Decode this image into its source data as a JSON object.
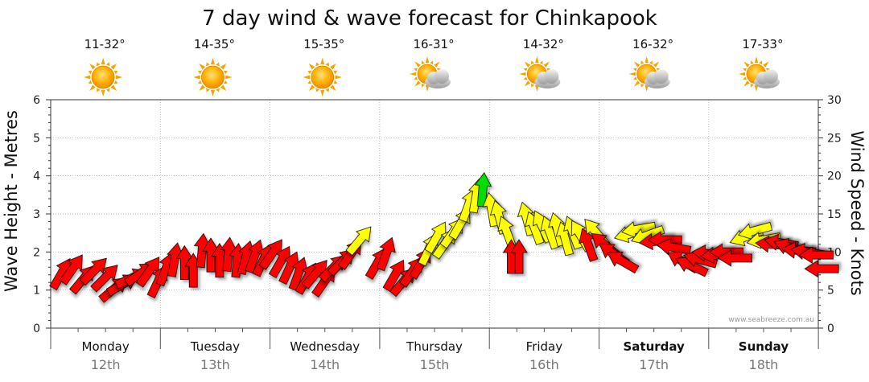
{
  "title": "7 day wind & wave forecast for Chinkapook",
  "watermark": "www.seabreeze.com.au",
  "colors": {
    "strong": "#ff0000",
    "moderate": "#ffff00",
    "light": "#00dd00"
  },
  "days": [
    {
      "name": "Monday",
      "date": "12th",
      "temp": "11-32°",
      "icon": "sun-icon",
      "bold": false
    },
    {
      "name": "Tuesday",
      "date": "13th",
      "temp": "14-35°",
      "icon": "sun-icon",
      "bold": false
    },
    {
      "name": "Wednesday",
      "date": "14th",
      "temp": "15-35°",
      "icon": "sun-icon",
      "bold": false
    },
    {
      "name": "Thursday",
      "date": "15th",
      "temp": "16-31°",
      "icon": "partly-cloudy-icon",
      "bold": false
    },
    {
      "name": "Friday",
      "date": "16th",
      "temp": "14-32°",
      "icon": "partly-cloudy-icon",
      "bold": false
    },
    {
      "name": "Saturday",
      "date": "17th",
      "temp": "16-32°",
      "icon": "partly-cloudy-icon",
      "bold": true
    },
    {
      "name": "Sunday",
      "date": "18th",
      "temp": "17-33°",
      "icon": "partly-cloudy-icon",
      "bold": true
    }
  ],
  "chart_data": {
    "type": "scatter",
    "title": "7 day wind & wave forecast for Chinkapook",
    "y_left_label": "Wave Height - Metres",
    "y_right_label": "Wind Speed - Knots",
    "y_left_range": [
      0,
      6
    ],
    "y_right_range": [
      0,
      30
    ],
    "y_left_ticks": [
      "0",
      "1",
      "2",
      "3",
      "4",
      "5",
      "6"
    ],
    "y_right_ticks": [
      "0",
      "5",
      "10",
      "15",
      "20",
      "25",
      "30"
    ],
    "grid": true,
    "series": [
      {
        "points": [
          {
            "t": 0.1,
            "v": 7.2,
            "dir": 210,
            "c": "strong"
          },
          {
            "t": 0.2,
            "v": 7.8,
            "dir": 215,
            "c": "strong"
          },
          {
            "t": 0.3,
            "v": 6.5,
            "dir": 220,
            "c": "strong"
          },
          {
            "t": 0.4,
            "v": 7.6,
            "dir": 225,
            "c": "strong"
          },
          {
            "t": 0.5,
            "v": 6.7,
            "dir": 225,
            "c": "strong"
          },
          {
            "t": 0.58,
            "v": 5.2,
            "dir": 230,
            "c": "strong"
          },
          {
            "t": 0.66,
            "v": 5.8,
            "dir": 240,
            "c": "strong"
          },
          {
            "t": 0.74,
            "v": 6.6,
            "dir": 245,
            "c": "strong"
          },
          {
            "t": 0.82,
            "v": 7.2,
            "dir": 235,
            "c": "strong"
          },
          {
            "t": 0.9,
            "v": 7.5,
            "dir": 215,
            "c": "strong"
          },
          {
            "t": 0.98,
            "v": 6.2,
            "dir": 205,
            "c": "strong"
          },
          {
            "t": 1.05,
            "v": 7.8,
            "dir": 200,
            "c": "strong"
          },
          {
            "t": 1.13,
            "v": 9.0,
            "dir": 190,
            "c": "strong"
          },
          {
            "t": 1.22,
            "v": 8.6,
            "dir": 180,
            "c": "strong"
          },
          {
            "t": 1.3,
            "v": 7.6,
            "dir": 180,
            "c": "strong"
          },
          {
            "t": 1.38,
            "v": 10.2,
            "dir": 185,
            "c": "strong"
          },
          {
            "t": 1.46,
            "v": 9.6,
            "dir": 180,
            "c": "strong"
          },
          {
            "t": 1.54,
            "v": 8.9,
            "dir": 180,
            "c": "strong"
          },
          {
            "t": 1.62,
            "v": 9.7,
            "dir": 185,
            "c": "strong"
          },
          {
            "t": 1.7,
            "v": 8.9,
            "dir": 185,
            "c": "strong"
          },
          {
            "t": 1.78,
            "v": 9.3,
            "dir": 195,
            "c": "strong"
          },
          {
            "t": 1.86,
            "v": 9.5,
            "dir": 200,
            "c": "strong"
          },
          {
            "t": 1.94,
            "v": 9.0,
            "dir": 205,
            "c": "strong"
          },
          {
            "t": 2.02,
            "v": 9.8,
            "dir": 215,
            "c": "strong"
          },
          {
            "t": 2.1,
            "v": 8.8,
            "dir": 210,
            "c": "strong"
          },
          {
            "t": 2.18,
            "v": 8.0,
            "dir": 205,
            "c": "strong"
          },
          {
            "t": 2.26,
            "v": 7.2,
            "dir": 200,
            "c": "strong"
          },
          {
            "t": 2.34,
            "v": 6.6,
            "dir": 210,
            "c": "strong"
          },
          {
            "t": 2.42,
            "v": 7.2,
            "dir": 220,
            "c": "strong"
          },
          {
            "t": 2.5,
            "v": 6.2,
            "dir": 215,
            "c": "strong"
          },
          {
            "t": 2.58,
            "v": 8.0,
            "dir": 225,
            "c": "strong"
          },
          {
            "t": 2.66,
            "v": 8.8,
            "dir": 225,
            "c": "strong"
          },
          {
            "t": 2.74,
            "v": 9.8,
            "dir": 215,
            "c": "strong"
          },
          {
            "t": 2.82,
            "v": 11.6,
            "dir": 220,
            "c": "moderate"
          },
          {
            "t": 2.98,
            "v": 8.6,
            "dir": 210,
            "c": "strong"
          },
          {
            "t": 3.06,
            "v": 9.8,
            "dir": 200,
            "c": "strong"
          },
          {
            "t": 3.14,
            "v": 7.0,
            "dir": 210,
            "c": "strong"
          },
          {
            "t": 3.22,
            "v": 6.2,
            "dir": 220,
            "c": "strong"
          },
          {
            "t": 3.3,
            "v": 7.5,
            "dir": 215,
            "c": "strong"
          },
          {
            "t": 3.38,
            "v": 8.6,
            "dir": 210,
            "c": "strong"
          },
          {
            "t": 3.45,
            "v": 10.4,
            "dir": 205,
            "c": "moderate"
          },
          {
            "t": 3.52,
            "v": 12.0,
            "dir": 210,
            "c": "moderate"
          },
          {
            "t": 3.6,
            "v": 11.2,
            "dir": 215,
            "c": "moderate"
          },
          {
            "t": 3.67,
            "v": 12.6,
            "dir": 215,
            "c": "moderate"
          },
          {
            "t": 3.74,
            "v": 13.8,
            "dir": 210,
            "c": "moderate"
          },
          {
            "t": 3.81,
            "v": 16.2,
            "dir": 200,
            "c": "moderate"
          },
          {
            "t": 3.88,
            "v": 17.4,
            "dir": 190,
            "c": "moderate"
          },
          {
            "t": 3.94,
            "v": 18.2,
            "dir": 185,
            "c": "light"
          },
          {
            "t": 4.02,
            "v": 15.6,
            "dir": 170,
            "c": "moderate"
          },
          {
            "t": 4.09,
            "v": 14.6,
            "dir": 165,
            "c": "moderate"
          },
          {
            "t": 4.16,
            "v": 12.6,
            "dir": 160,
            "c": "moderate"
          },
          {
            "t": 4.2,
            "v": 9.4,
            "dir": 180,
            "c": "strong"
          },
          {
            "t": 4.27,
            "v": 9.4,
            "dir": 180,
            "c": "strong"
          },
          {
            "t": 4.34,
            "v": 14.4,
            "dir": 165,
            "c": "moderate"
          },
          {
            "t": 4.41,
            "v": 13.2,
            "dir": 160,
            "c": "moderate"
          },
          {
            "t": 4.48,
            "v": 13.4,
            "dir": 155,
            "c": "moderate"
          },
          {
            "t": 4.55,
            "v": 12.6,
            "dir": 160,
            "c": "moderate"
          },
          {
            "t": 4.62,
            "v": 13.0,
            "dir": 165,
            "c": "moderate"
          },
          {
            "t": 4.69,
            "v": 11.8,
            "dir": 165,
            "c": "moderate"
          },
          {
            "t": 4.76,
            "v": 12.6,
            "dir": 160,
            "c": "moderate"
          },
          {
            "t": 4.83,
            "v": 12.2,
            "dir": 150,
            "c": "moderate"
          },
          {
            "t": 4.9,
            "v": 11.0,
            "dir": 160,
            "c": "strong"
          },
          {
            "t": 4.97,
            "v": 12.6,
            "dir": 140,
            "c": "moderate"
          },
          {
            "t": 5.05,
            "v": 11.0,
            "dir": 130,
            "c": "strong"
          },
          {
            "t": 5.13,
            "v": 9.8,
            "dir": 125,
            "c": "strong"
          },
          {
            "t": 5.21,
            "v": 8.8,
            "dir": 120,
            "c": "strong"
          },
          {
            "t": 5.29,
            "v": 12.4,
            "dir": 75,
            "c": "moderate"
          },
          {
            "t": 5.36,
            "v": 13.0,
            "dir": 80,
            "c": "moderate"
          },
          {
            "t": 5.44,
            "v": 12.2,
            "dir": 70,
            "c": "moderate"
          },
          {
            "t": 5.52,
            "v": 11.4,
            "dir": 85,
            "c": "strong"
          },
          {
            "t": 5.6,
            "v": 11.6,
            "dir": 90,
            "c": "strong"
          },
          {
            "t": 5.68,
            "v": 10.6,
            "dir": 100,
            "c": "strong"
          },
          {
            "t": 5.76,
            "v": 8.8,
            "dir": 120,
            "c": "strong"
          },
          {
            "t": 5.84,
            "v": 8.2,
            "dir": 115,
            "c": "strong"
          },
          {
            "t": 5.92,
            "v": 9.0,
            "dir": 105,
            "c": "strong"
          },
          {
            "t": 6.0,
            "v": 9.8,
            "dir": 95,
            "c": "strong"
          },
          {
            "t": 6.08,
            "v": 9.6,
            "dir": 85,
            "c": "strong"
          },
          {
            "t": 6.16,
            "v": 10.0,
            "dir": 90,
            "c": "strong"
          },
          {
            "t": 6.24,
            "v": 9.2,
            "dir": 90,
            "c": "strong"
          },
          {
            "t": 6.34,
            "v": 12.0,
            "dir": 70,
            "c": "moderate"
          },
          {
            "t": 6.42,
            "v": 12.8,
            "dir": 75,
            "c": "moderate"
          },
          {
            "t": 6.5,
            "v": 11.6,
            "dir": 80,
            "c": "moderate"
          },
          {
            "t": 6.58,
            "v": 11.0,
            "dir": 95,
            "c": "strong"
          },
          {
            "t": 6.66,
            "v": 11.2,
            "dir": 100,
            "c": "strong"
          },
          {
            "t": 6.74,
            "v": 10.6,
            "dir": 110,
            "c": "strong"
          },
          {
            "t": 6.82,
            "v": 10.2,
            "dir": 95,
            "c": "strong"
          },
          {
            "t": 6.9,
            "v": 10.0,
            "dir": 100,
            "c": "strong"
          },
          {
            "t": 6.98,
            "v": 9.6,
            "dir": 90,
            "c": "strong"
          },
          {
            "t": 7.03,
            "v": 7.8,
            "dir": 90,
            "c": "strong"
          }
        ]
      }
    ]
  }
}
